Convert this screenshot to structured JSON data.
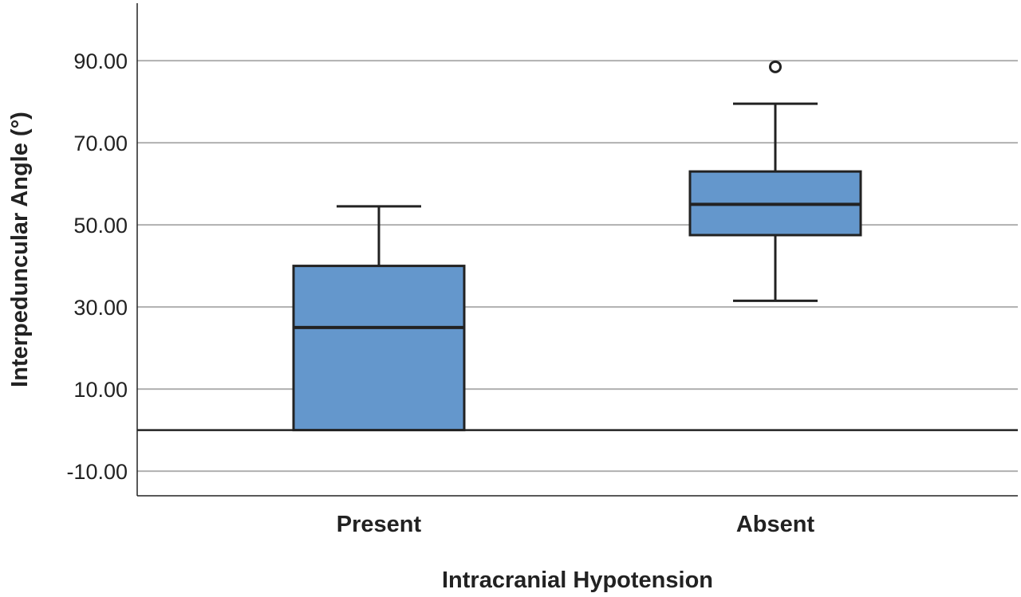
{
  "chart_data": {
    "type": "boxplot",
    "xlabel": "Intracranial Hypotension",
    "ylabel": "Interpeduncular Angle (°)",
    "ylim": [
      -16,
      104
    ],
    "yticks": [
      -10,
      10,
      30,
      50,
      70,
      90
    ],
    "ytick_labels": [
      "-10.00",
      "10.00",
      "30.00",
      "50.00",
      "70.00",
      "90.00"
    ],
    "reference_line": 0,
    "grid": "horizontal",
    "categories": [
      "Present",
      "Absent"
    ],
    "boxes": [
      {
        "category": "Present",
        "whisker_low": 0,
        "q1": 0,
        "median": 25,
        "q3": 40,
        "whisker_high": 54.5,
        "outliers": []
      },
      {
        "category": "Absent",
        "whisker_low": 31.5,
        "q1": 47.5,
        "median": 55,
        "q3": 63,
        "whisker_high": 79.5,
        "outliers": [
          88.5
        ]
      }
    ],
    "colors": {
      "box_fill": "#6497cc",
      "box_stroke": "#222222",
      "grid": "#b0b0b0",
      "axis": "#222222"
    }
  }
}
